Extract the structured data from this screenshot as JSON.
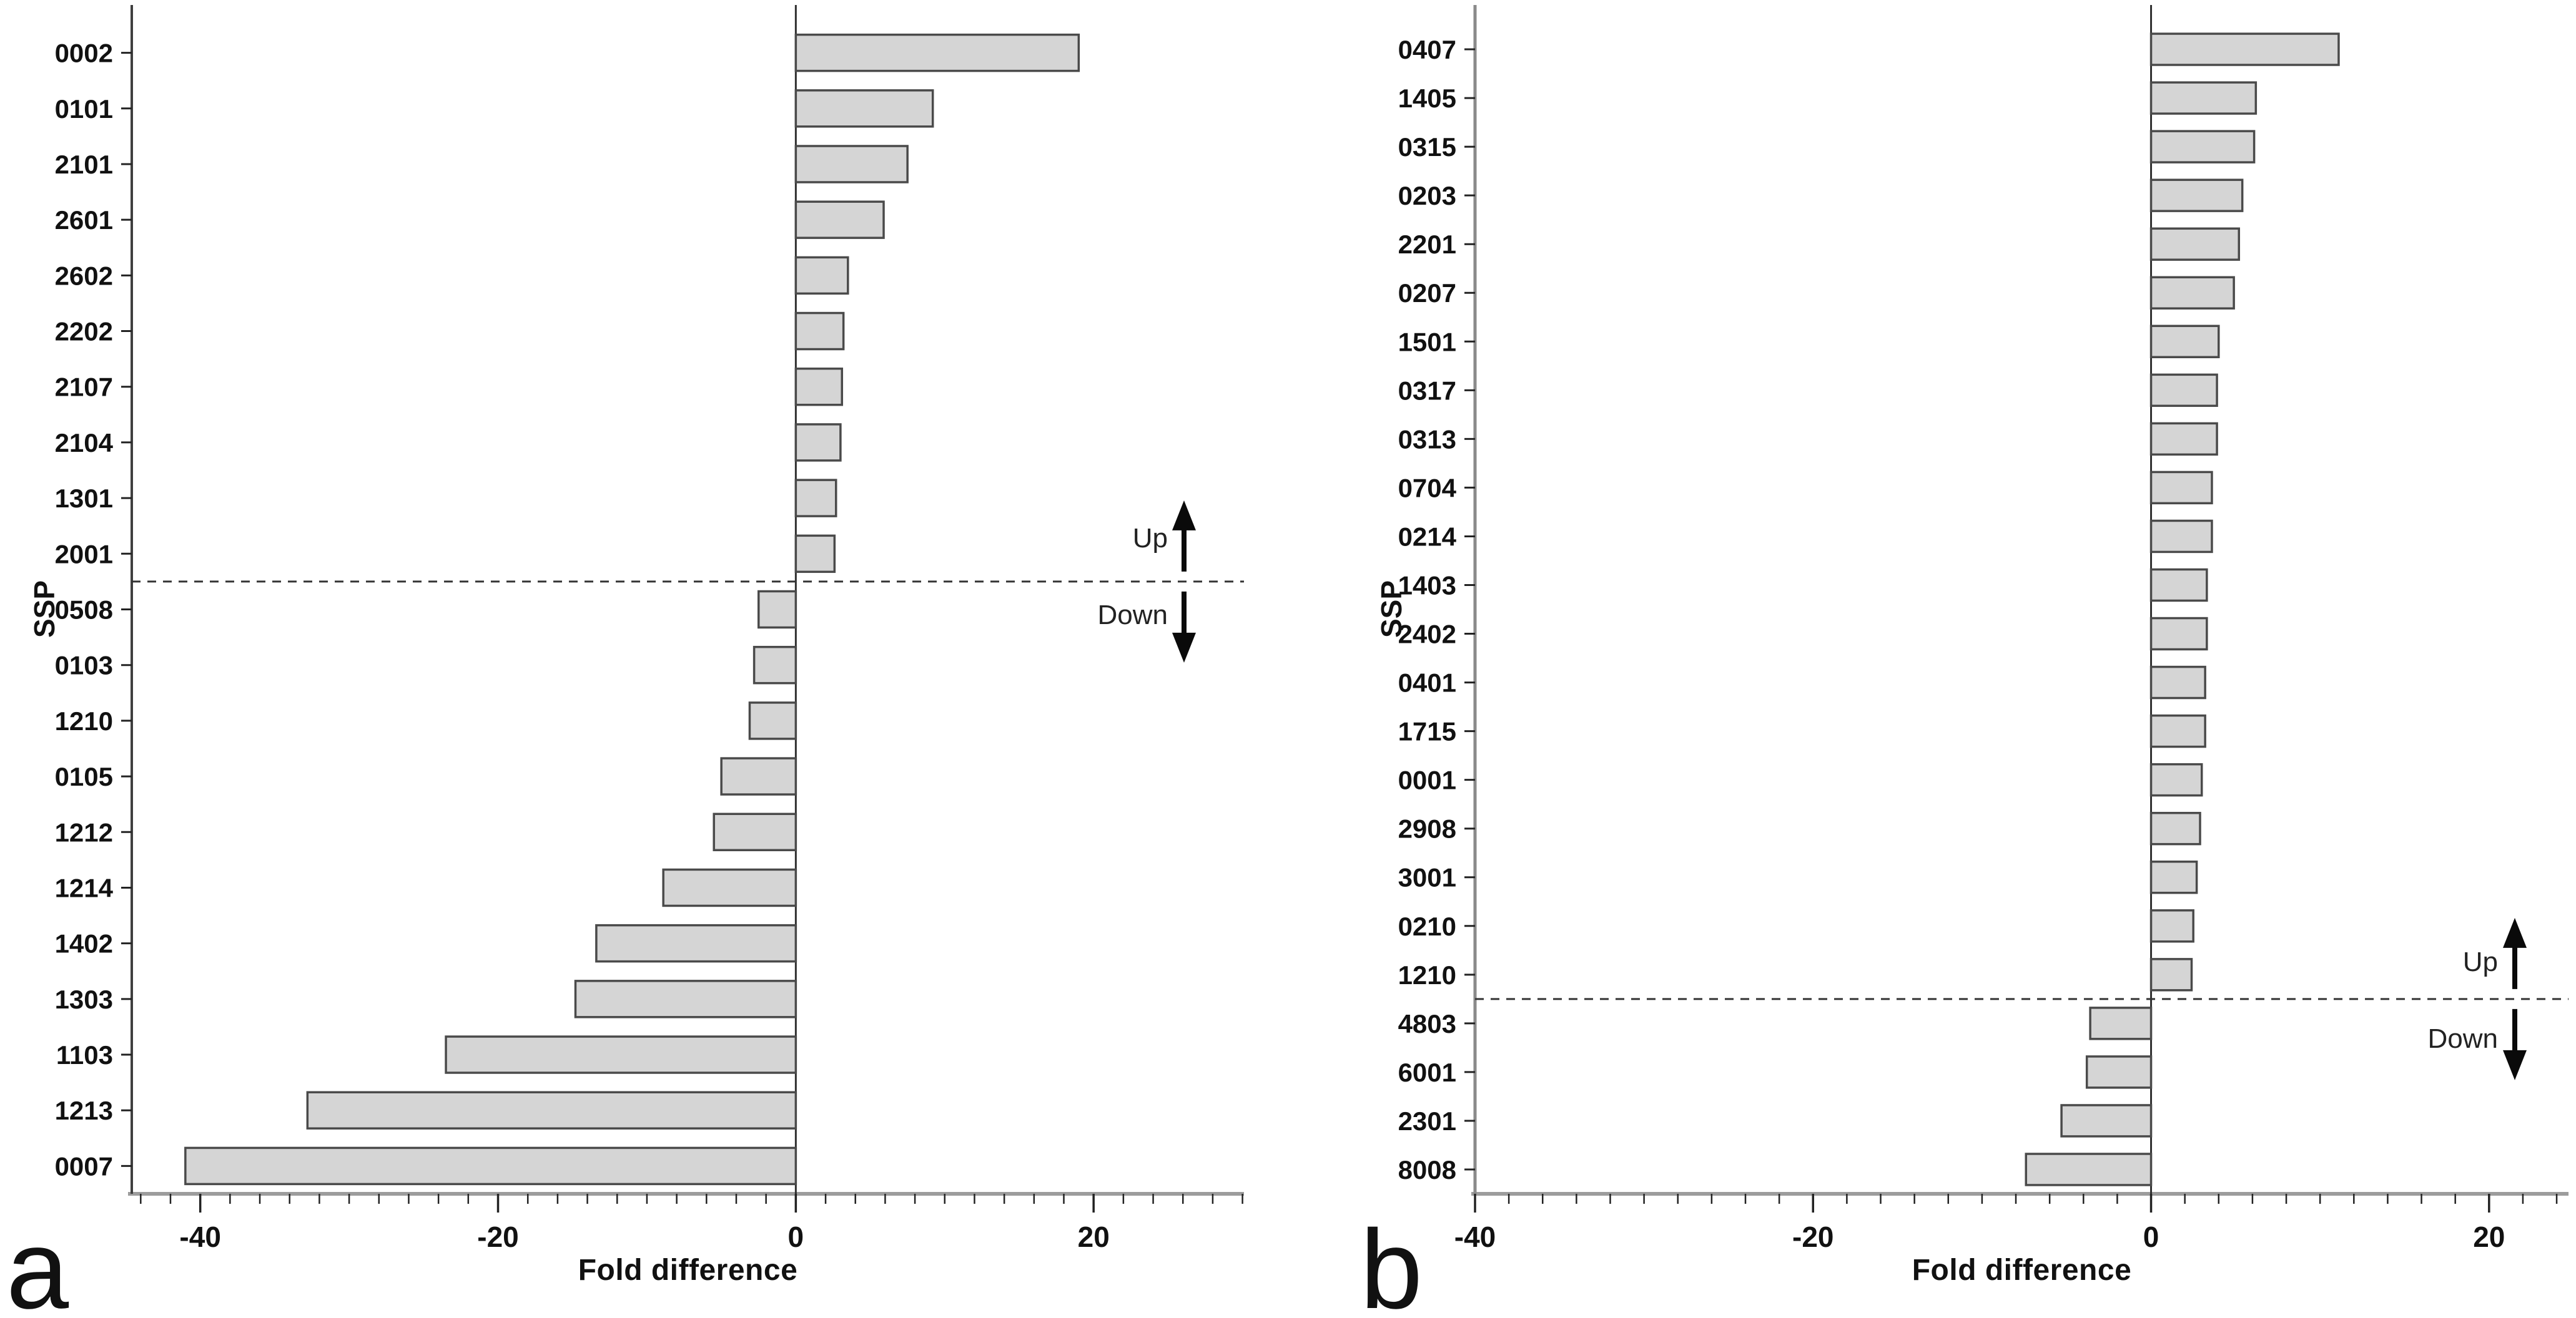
{
  "annotations": {
    "up": "Up",
    "down": "Down"
  },
  "colors": {
    "bar_fill": "#d5d5d5",
    "bar_stroke": "#4a4a4a",
    "axis_line": "#9c9c9c",
    "spine_a": "#3f3f3f",
    "spine_b": "#8a8a8a",
    "zero_line": "#2f2f2f",
    "dashed_line": "#333333",
    "tick": "#222222",
    "text": "#111111",
    "arrow": "#0a0a0a"
  },
  "chart_data": [
    {
      "type": "bar",
      "orientation": "horizontal",
      "panel_letter": "a",
      "xlabel": "Fold difference",
      "ylabel": "SSP",
      "xlim": [
        -44.6,
        30.1
      ],
      "major_ticks": [
        -40,
        -20,
        0,
        20
      ],
      "x_tick_labels": [
        "-40",
        "-20",
        "0",
        "20"
      ],
      "minor_tick_range": [
        -44,
        30
      ],
      "minor_tick_step": 2,
      "up_down_split_index": 10,
      "categories": [
        "0002",
        "0101",
        "2101",
        "2601",
        "2602",
        "2202",
        "2107",
        "2104",
        "1301",
        "2001",
        "0508",
        "0103",
        "1210",
        "0105",
        "1212",
        "1214",
        "1402",
        "1303",
        "1103",
        "1213",
        "0007"
      ],
      "values": [
        19.0,
        9.2,
        7.5,
        5.9,
        3.5,
        3.2,
        3.1,
        3.0,
        2.7,
        2.6,
        -2.5,
        -2.8,
        -3.1,
        -5.0,
        -5.5,
        -8.9,
        -13.4,
        -14.8,
        -23.5,
        -32.8,
        -41.0
      ]
    },
    {
      "type": "bar",
      "orientation": "horizontal",
      "panel_letter": "b",
      "xlabel": "Fold difference",
      "ylabel": "SSP",
      "xlim": [
        -40.0,
        24.7
      ],
      "major_ticks": [
        -40,
        -20,
        0,
        20
      ],
      "x_tick_labels": [
        "-40",
        "-20",
        "0",
        "20"
      ],
      "minor_tick_range": [
        -40,
        24
      ],
      "minor_tick_step": 2,
      "up_down_split_index": 20,
      "categories": [
        "0407",
        "1405",
        "0315",
        "0203",
        "2201",
        "0207",
        "1501",
        "0317",
        "0313",
        "0704",
        "0214",
        "1403",
        "2402",
        "0401",
        "1715",
        "0001",
        "2908",
        "3001",
        "0210",
        "1210",
        "4803",
        "6001",
        "2301",
        "8008"
      ],
      "values": [
        11.1,
        6.2,
        6.1,
        5.4,
        5.2,
        4.9,
        4.0,
        3.9,
        3.9,
        3.6,
        3.6,
        3.3,
        3.3,
        3.2,
        3.2,
        3.0,
        2.9,
        2.7,
        2.5,
        2.4,
        -3.6,
        -3.8,
        -5.3,
        -7.4
      ]
    }
  ]
}
